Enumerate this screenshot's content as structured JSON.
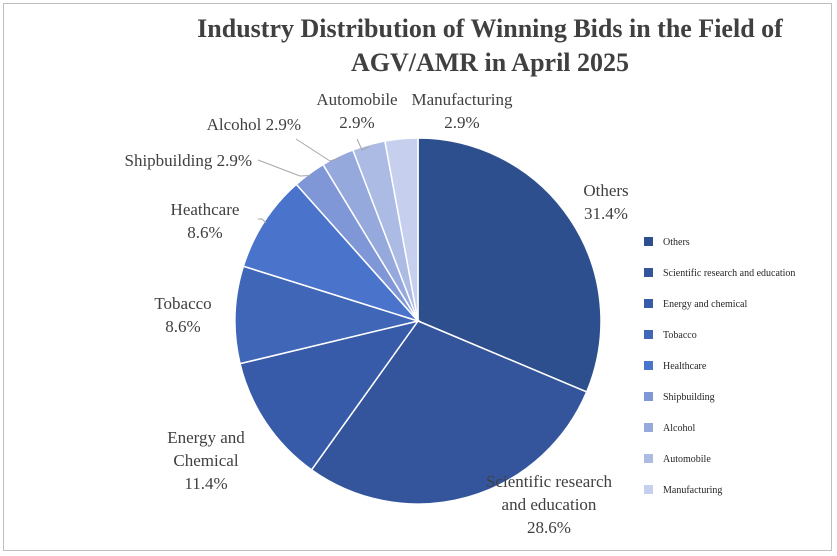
{
  "chart_data": {
    "type": "pie",
    "title_lines": [
      "Industry Distribution of Winning Bids in the Field of",
      "AGV/AMR in April 2025"
    ],
    "unit": "%",
    "legend_position": "right",
    "slices": [
      {
        "name": "Others",
        "value": 31.4,
        "label_lines": [
          "Others",
          "31.4%"
        ],
        "color": "#2e4f8d"
      },
      {
        "name": "Scientific research and education",
        "value": 28.6,
        "label_lines": [
          "Scientific research",
          "and education",
          "28.6%"
        ],
        "color": "#34559c"
      },
      {
        "name": "Energy and chemical",
        "value": 11.4,
        "label_lines": [
          "Energy and",
          "Chemical",
          "11.4%"
        ],
        "color": "#375ba8"
      },
      {
        "name": "Tobacco",
        "value": 8.6,
        "label_lines": [
          "Tobacco",
          "8.6%"
        ],
        "color": "#4067b7"
      },
      {
        "name": "Healthcare",
        "value": 8.6,
        "label_lines": [
          "Heathcare",
          "8.6%"
        ],
        "color": "#4a73cc"
      },
      {
        "name": "Shipbuilding",
        "value": 2.9,
        "label_lines": [
          "Shipbuilding 2.9%"
        ],
        "color": "#7f97d6"
      },
      {
        "name": "Alcohol",
        "value": 2.9,
        "label_lines": [
          "Alcohol 2.9%"
        ],
        "color": "#96a9dd"
      },
      {
        "name": "Automobile",
        "value": 2.9,
        "label_lines": [
          "Automobile",
          "2.9%"
        ],
        "color": "#acbbe4"
      },
      {
        "name": "Manufacturing",
        "value": 2.9,
        "label_lines": [
          "Manufacturing",
          "2.9%"
        ],
        "color": "#c6d0ee"
      }
    ]
  }
}
